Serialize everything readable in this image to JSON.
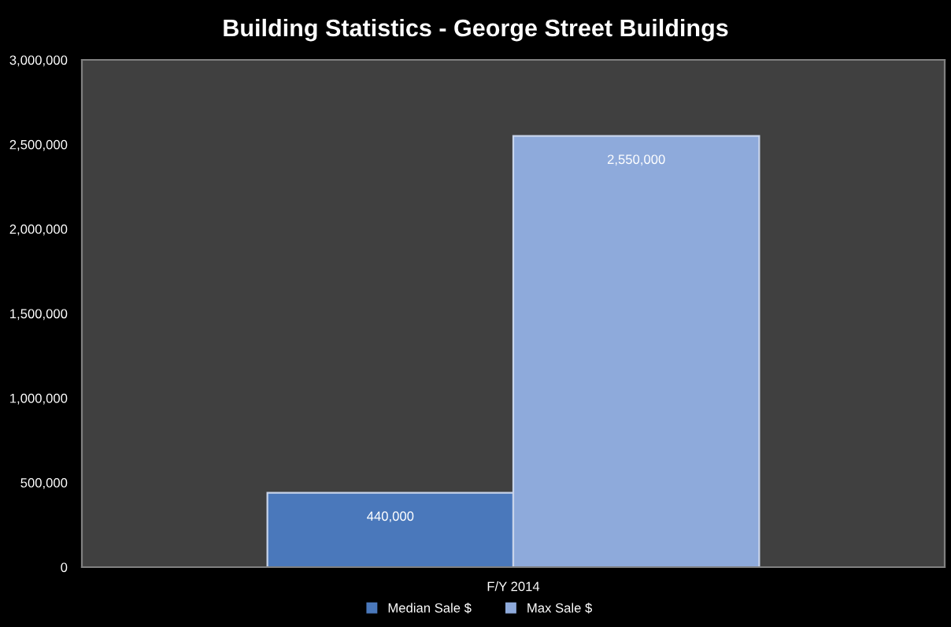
{
  "chart_data": {
    "type": "bar",
    "title": "Building Statistics - George Street Buildings",
    "categories": [
      "F/Y 2014"
    ],
    "series": [
      {
        "name": "Median Sale $",
        "color": "#4a78bb",
        "values": [
          440000
        ],
        "value_labels": [
          "440,000"
        ]
      },
      {
        "name": "Max Sale $",
        "color": "#8eaadb",
        "values": [
          2550000
        ],
        "value_labels": [
          "2,550,000"
        ]
      }
    ],
    "ylim": [
      0,
      3000000
    ],
    "yticks": [
      {
        "value": 0,
        "label": "0"
      },
      {
        "value": 500000,
        "label": "500,000"
      },
      {
        "value": 1000000,
        "label": "1,000,000"
      },
      {
        "value": 1500000,
        "label": "1,500,000"
      },
      {
        "value": 2000000,
        "label": "2,000,000"
      },
      {
        "value": 2500000,
        "label": "2,500,000"
      },
      {
        "value": 3000000,
        "label": "3,000,000"
      }
    ],
    "grid": false,
    "legend": "bottom"
  }
}
